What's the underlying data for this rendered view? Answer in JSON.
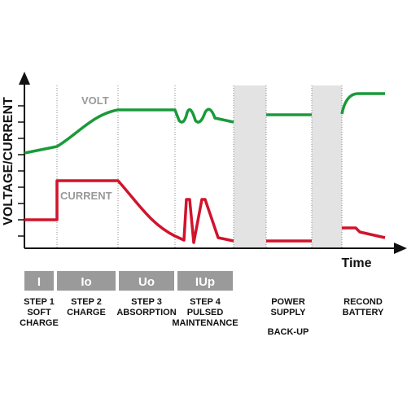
{
  "axis_labels": {
    "y": "VOLTAGE/CURRENT",
    "x": "Time"
  },
  "curve_labels": {
    "volt": "VOLT",
    "current": "CURRENT"
  },
  "boxes": [
    "I",
    "Io",
    "Uo",
    "IUp"
  ],
  "steps": [
    {
      "lines": [
        "STEP 1",
        "SOFT",
        "CHARGE"
      ]
    },
    {
      "lines": [
        "STEP 2",
        "CHARGE"
      ]
    },
    {
      "lines": [
        "STEP 3",
        "ABSORPTION"
      ]
    },
    {
      "lines": [
        "STEP 4",
        "PULSED",
        "MAINTENANCE"
      ]
    },
    {
      "lines": [
        "POWER",
        "SUPPLY"
      ],
      "note": "BACK-UP"
    },
    {
      "lines": [
        "RECOND",
        "BATTERY"
      ]
    }
  ]
}
